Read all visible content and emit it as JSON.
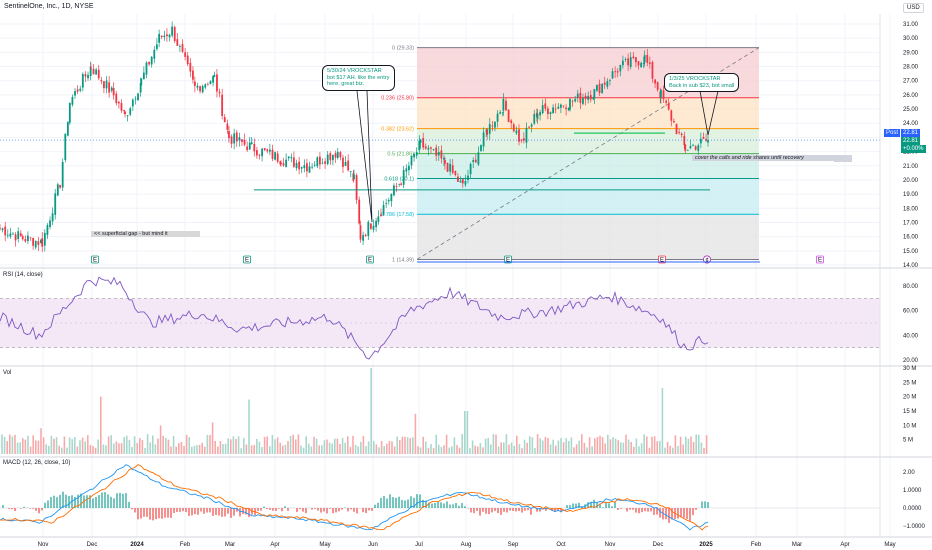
{
  "header": {
    "title": "SentinelOne, Inc., 1D, NYSE",
    "currency": "USD"
  },
  "price_panel": {
    "post_label": "Post",
    "last_price": "22.81",
    "post_price": "22.81",
    "post_change": "+0.00%",
    "y_ticks": [
      "31.00",
      "30.00",
      "29.00",
      "28.00",
      "27.00",
      "26.00",
      "25.00",
      "24.00",
      "23.00",
      "22.00",
      "21.00",
      "20.00",
      "19.00",
      "18.00",
      "17.00",
      "16.00",
      "15.00",
      "14.00"
    ]
  },
  "x_axis": {
    "labels": [
      "Nov",
      "Dec",
      "2024",
      "Feb",
      "Mar",
      "Apr",
      "May",
      "Jun",
      "Jul",
      "Aug",
      "Sep",
      "Oct",
      "Nov",
      "Dec",
      "2025",
      "Feb",
      "Mar",
      "Apr",
      "May"
    ]
  },
  "fib": {
    "levels": [
      {
        "label": "0 (29.33)",
        "value": 29.33,
        "color": "#787b86"
      },
      {
        "label": "0.236 (25.80)",
        "value": 25.8,
        "color": "#f23645"
      },
      {
        "label": "0.382 (23.62)",
        "value": 23.62,
        "color": "#ff9800"
      },
      {
        "label": "0.5 (21.86)",
        "value": 21.86,
        "color": "#4caf50"
      },
      {
        "label": "0.618 (20.1)",
        "value": 20.1,
        "color": "#089981"
      },
      {
        "label": "0.786 (17.58)",
        "value": 17.58,
        "color": "#00bcd4"
      },
      {
        "label": "1 (14.39)",
        "value": 14.39,
        "color": "#787b86"
      }
    ],
    "zone_colors": [
      "#f7cdd0",
      "#fde3c4",
      "#d9efd9",
      "#c9ece5",
      "#c5eef3",
      "#e3e3e3"
    ]
  },
  "annotations": {
    "note1": [
      "5/30/24 VROCKSTAR",
      "bot $17 AH. like the entry",
      "here. great biz."
    ],
    "note2": [
      "1/3/25 VROCKSTAR",
      "Back in sub $23, bot small"
    ],
    "gap_note": "<< superficial gap - but mind it",
    "cover_note": "cover the calls and ride shares until recovery"
  },
  "events": {
    "earnings_markers": [
      "E",
      "E",
      "E",
      "E",
      "E"
    ],
    "dividend_marker": "¢",
    "future_marker": "E"
  },
  "rsi": {
    "title": "RSI (14, close)",
    "levels": [
      "80.00",
      "60.00",
      "40.00",
      "20.00"
    ],
    "band_color": "#7e57c2"
  },
  "volume": {
    "title": "Vol",
    "levels": [
      "30 M",
      "25 M",
      "20 M",
      "15 M",
      "10 M",
      "5 M"
    ]
  },
  "macd": {
    "title": "MACD (12, 26, close, 10)",
    "levels": [
      "2.00",
      "1.0000",
      "0.0000",
      "−1.0000"
    ]
  },
  "chart_data": {
    "type": "candlestick",
    "ticker": "SentinelOne, Inc.",
    "timeframe": "1D",
    "exchange": "NYSE",
    "ylim": [
      14,
      31
    ],
    "close_path": [
      {
        "date": "2023-10-25",
        "close": 16.6
      },
      {
        "date": "2023-11-08",
        "close": 15.9
      },
      {
        "date": "2023-11-20",
        "close": 15.6
      },
      {
        "date": "2023-12-01",
        "close": 19.8
      },
      {
        "date": "2023-12-07",
        "close": 25.5
      },
      {
        "date": "2023-12-20",
        "close": 28.0
      },
      {
        "date": "2024-01-03",
        "close": 26.0
      },
      {
        "date": "2024-01-10",
        "close": 24.5
      },
      {
        "date": "2024-01-20",
        "close": 27.0
      },
      {
        "date": "2024-01-31",
        "close": 30.0
      },
      {
        "date": "2024-02-08",
        "close": 30.6
      },
      {
        "date": "2024-02-22",
        "close": 26.5
      },
      {
        "date": "2024-03-05",
        "close": 27.2
      },
      {
        "date": "2024-03-14",
        "close": 23.0
      },
      {
        "date": "2024-03-28",
        "close": 22.3
      },
      {
        "date": "2024-04-15",
        "close": 21.5
      },
      {
        "date": "2024-05-01",
        "close": 21.0
      },
      {
        "date": "2024-05-20",
        "close": 22.0
      },
      {
        "date": "2024-05-30",
        "close": 20.0
      },
      {
        "date": "2024-06-03",
        "close": 16.0
      },
      {
        "date": "2024-06-14",
        "close": 17.6
      },
      {
        "date": "2024-06-28",
        "close": 20.0
      },
      {
        "date": "2024-07-10",
        "close": 22.5
      },
      {
        "date": "2024-07-25",
        "close": 21.2
      },
      {
        "date": "2024-08-05",
        "close": 19.5
      },
      {
        "date": "2024-08-20",
        "close": 23.5
      },
      {
        "date": "2024-08-30",
        "close": 25.3
      },
      {
        "date": "2024-09-10",
        "close": 22.6
      },
      {
        "date": "2024-09-20",
        "close": 24.8
      },
      {
        "date": "2024-10-10",
        "close": 25.5
      },
      {
        "date": "2024-10-25",
        "close": 26.2
      },
      {
        "date": "2024-11-10",
        "close": 28.0
      },
      {
        "date": "2024-11-25",
        "close": 28.6
      },
      {
        "date": "2024-12-05",
        "close": 26.0
      },
      {
        "date": "2024-12-20",
        "close": 22.2
      },
      {
        "date": "2025-01-03",
        "close": 22.8
      }
    ],
    "last_close": 22.81,
    "support_lines": [
      20.1,
      19.3
    ]
  }
}
